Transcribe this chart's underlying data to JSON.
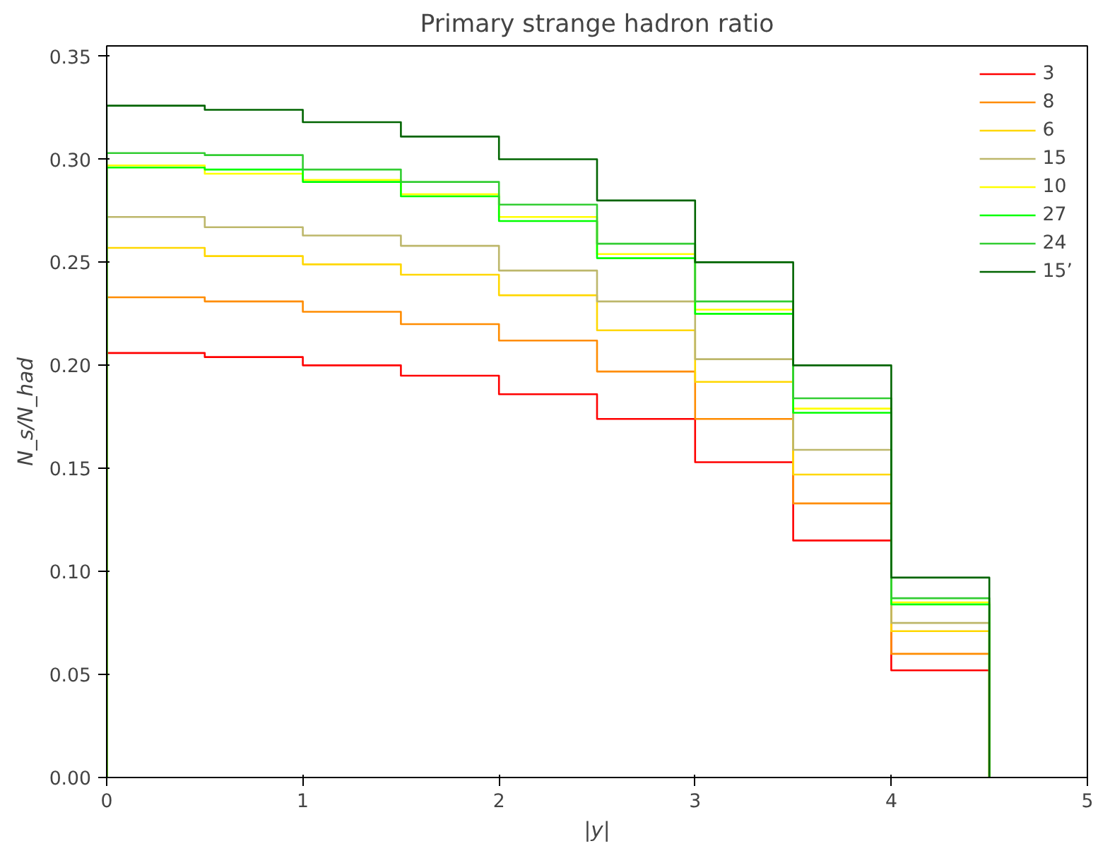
{
  "chart_data": {
    "type": "histogram",
    "title": "Primary strange hadron ratio",
    "xlabel": "|y|",
    "ylabel": "N_s/N_had",
    "bins": [
      0,
      0.5,
      1,
      1.5,
      2,
      2.5,
      3,
      3.5,
      4,
      4.5
    ],
    "series": [
      {
        "name": "3",
        "color": "#ff0000",
        "values": [
          0.206,
          0.204,
          0.2,
          0.195,
          0.186,
          0.174,
          0.153,
          0.115,
          0.052
        ]
      },
      {
        "name": "8",
        "color": "#ff8c00",
        "values": [
          0.233,
          0.231,
          0.226,
          0.22,
          0.212,
          0.197,
          0.174,
          0.133,
          0.06
        ]
      },
      {
        "name": "6",
        "color": "#ffd700",
        "values": [
          0.257,
          0.253,
          0.249,
          0.244,
          0.234,
          0.217,
          0.192,
          0.147,
          0.071
        ]
      },
      {
        "name": "15",
        "color": "#bdb76b",
        "values": [
          0.272,
          0.267,
          0.263,
          0.258,
          0.246,
          0.231,
          0.203,
          0.159,
          0.075
        ]
      },
      {
        "name": "10",
        "color": "#ffff00",
        "values": [
          0.297,
          0.293,
          0.29,
          0.283,
          0.272,
          0.254,
          0.227,
          0.179,
          0.085
        ]
      },
      {
        "name": "27",
        "color": "#00ff00",
        "values": [
          0.296,
          0.295,
          0.289,
          0.282,
          0.27,
          0.252,
          0.225,
          0.177,
          0.084
        ]
      },
      {
        "name": "24",
        "color": "#32cd32",
        "values": [
          0.303,
          0.302,
          0.295,
          0.289,
          0.278,
          0.259,
          0.231,
          0.184,
          0.087
        ]
      },
      {
        "name": "15’",
        "color": "#006400",
        "values": [
          0.326,
          0.324,
          0.318,
          0.311,
          0.3,
          0.28,
          0.25,
          0.2,
          0.097
        ]
      }
    ],
    "xlim": [
      0,
      5
    ],
    "ylim": [
      0,
      0.355
    ],
    "xticks": [
      0,
      1,
      2,
      3,
      4,
      5
    ],
    "yticks": [
      {
        "value": 0,
        "label": "0.00"
      },
      {
        "value": 0.05,
        "label": "0.05"
      },
      {
        "value": 0.1,
        "label": "0.10"
      },
      {
        "value": 0.15,
        "label": "0.15"
      },
      {
        "value": 0.2,
        "label": "0.20"
      },
      {
        "value": 0.25,
        "label": "0.25"
      },
      {
        "value": 0.3,
        "label": "0.30"
      },
      {
        "value": 0.35,
        "label": "0.35"
      }
    ],
    "grid": false,
    "legend": "top right"
  }
}
